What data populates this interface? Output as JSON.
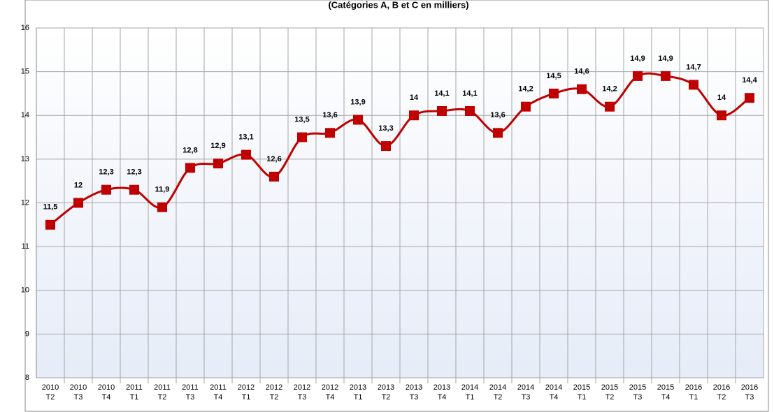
{
  "chart_data": {
    "type": "line",
    "title": "(Catégories A, B et C en milliers)",
    "categories": [
      "2010 T2",
      "2010 T3",
      "2010 T4",
      "2011 T1",
      "2011 T2",
      "2011 T3",
      "2011 T4",
      "2012 T1",
      "2012 T2",
      "2012 T3",
      "2012 T4",
      "2013 T1",
      "2013 T2",
      "2013 T3",
      "2013 T4",
      "2014 T1",
      "2014 T2",
      "2014 T3",
      "2014 T4",
      "2015 T1",
      "2015 T2",
      "2015 T3",
      "2015 T4",
      "2016 T1",
      "2016 T2",
      "2016 T3"
    ],
    "series": [
      {
        "color": "#c00000",
        "values": [
          11.5,
          12,
          12.3,
          12.3,
          11.9,
          12.8,
          12.9,
          13.1,
          12.6,
          13.5,
          13.6,
          13.9,
          13.3,
          14,
          14.1,
          14.1,
          13.6,
          14.2,
          14.5,
          14.6,
          14.2,
          14.9,
          14.9,
          14.7,
          14,
          14.4
        ],
        "value_labels": [
          "11,5",
          "12",
          "12,3",
          "12,3",
          "11,9",
          "12,8",
          "12,9",
          "13,1",
          "12,6",
          "13,5",
          "13,6",
          "13,9",
          "13,3",
          "14",
          "14,1",
          "14,1",
          "13,6",
          "14,2",
          "14,5",
          "14,6",
          "14,2",
          "14,9",
          "14,9",
          "14,7",
          "14",
          "14,4"
        ]
      }
    ],
    "ylim": [
      8,
      16
    ],
    "yticks": [
      8,
      9,
      10,
      11,
      12,
      13,
      14,
      15,
      16
    ],
    "grid": true
  }
}
